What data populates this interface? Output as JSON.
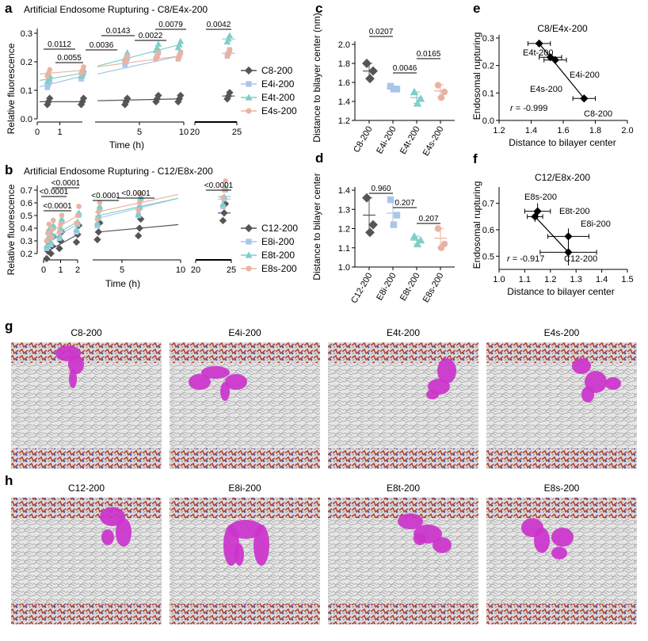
{
  "colors": {
    "C": "#555555",
    "Ei": "#a9c6ea",
    "Et": "#7fcfc8",
    "Es": "#eab3a1",
    "purple": "#cc33cc"
  },
  "panel_labels": {
    "a": "a",
    "b": "b",
    "c": "c",
    "d": "d",
    "e": "e",
    "f": "f",
    "g": "g",
    "h": "h"
  },
  "panels": {
    "a": {
      "title": "Artificial Endosome Rupturing - C8/E4x-200",
      "xlabel": "Time (h)",
      "ylabel": "Relative fluorescence",
      "yticks": [
        "0.0",
        "0.1",
        "0.2",
        "0.3"
      ],
      "xticks": [
        "0",
        "1",
        "5",
        "10",
        "20",
        "25"
      ],
      "legend": [
        "C8-200",
        "E4i-200",
        "E4t-200",
        "E4s-200"
      ],
      "sig": [
        "0.0112",
        "0.0055",
        "0.0036",
        "0.0143",
        "0.0022",
        "0.0079",
        "0.0042"
      ]
    },
    "b": {
      "title": "Artificial Endosome Rupturing - C12/E8x-200",
      "xlabel": "Time (h)",
      "ylabel": "Relative fluorescence",
      "yticks": [
        "0.2",
        "0.3",
        "0.4",
        "0.5",
        "0.6",
        "0.7"
      ],
      "xticks": [
        "0",
        "1",
        "2",
        "5",
        "10",
        "20",
        "25"
      ],
      "legend": [
        "C12-200",
        "E8i-200",
        "E8t-200",
        "E8s-200"
      ],
      "sig": [
        "<0.0001",
        "<0.0001",
        "<0.0001",
        "<0.0001",
        "<0.0001",
        "<0.0001"
      ]
    },
    "c": {
      "ylabel": "Distance to bilayer center (nm)",
      "yticks": [
        "1.2",
        "1.4",
        "1.6",
        "1.8",
        "2.0"
      ],
      "categories": [
        "C8-200",
        "E4i-200",
        "E4t-200",
        "E4s-200"
      ],
      "sig": [
        "0.0207",
        "0.0046",
        "0.0165"
      ]
    },
    "d": {
      "ylabel": "Distance to bilayer center",
      "yticks": [
        "1.0",
        "1.1",
        "1.2",
        "1.3",
        "1.4"
      ],
      "categories": [
        "C12-200",
        "E8i-200",
        "E8t-200",
        "E8s-200"
      ],
      "sig": [
        "0.960",
        "0.207",
        "0.207"
      ]
    },
    "e": {
      "title": "C8/E4x-200",
      "xlabel": "Distance to bilayer center",
      "ylabel": "Endosomal rupturing",
      "xticks": [
        "1.2",
        "1.4",
        "1.6",
        "1.8",
        "2.0"
      ],
      "yticks": [
        "0.0",
        "0.1",
        "0.2",
        "0.3"
      ],
      "r": "= -0.999",
      "r_sym": "r",
      "labels": [
        "E4t-200",
        "E4i-200",
        "E4s-200",
        "C8-200"
      ]
    },
    "f": {
      "title": "C12/E8x-200",
      "xlabel": "Distance to bilayer center",
      "ylabel": "Endosomal rupturing",
      "xticks": [
        "1.0",
        "1.1",
        "1.2",
        "1.3",
        "1.4",
        "1.5"
      ],
      "yticks": [
        "0.5",
        "0.6",
        "0.7"
      ],
      "r": "= -0.917",
      "r_sym": "r",
      "labels": [
        "E8s-200",
        "E8t-200",
        "E8i-200",
        "C12-200"
      ]
    },
    "g": {
      "titles": [
        "C8-200",
        "E4i-200",
        "E4t-200",
        "E4s-200"
      ]
    },
    "h": {
      "titles": [
        "C12-200",
        "E8i-200",
        "E8t-200",
        "E8s-200"
      ]
    }
  },
  "chart_data": [
    {
      "panel": "a",
      "type": "scatter",
      "title": "Artificial Endosome Rupturing - C8/E4x-200",
      "xlabel": "Time (h)",
      "ylabel": "Relative fluorescence",
      "ylim": [
        0,
        0.3
      ],
      "x": [
        0.5,
        2,
        3.5,
        7,
        9.5,
        24
      ],
      "series": [
        {
          "name": "C8-200",
          "values": [
            0.06,
            0.06,
            0.06,
            0.07,
            0.07,
            0.08
          ]
        },
        {
          "name": "E4i-200",
          "values": [
            0.12,
            0.15,
            0.2,
            0.22,
            0.22,
            0.23
          ]
        },
        {
          "name": "E4t-200",
          "values": [
            0.14,
            0.16,
            0.22,
            0.25,
            0.26,
            0.28
          ]
        },
        {
          "name": "E4s-200",
          "values": [
            0.16,
            0.17,
            0.21,
            0.22,
            0.22,
            0.23
          ]
        }
      ]
    },
    {
      "panel": "b",
      "type": "scatter",
      "title": "Artificial Endosome Rupturing - C12/E8x-200",
      "xlabel": "Time (h)",
      "ylabel": "Relative fluorescence",
      "ylim": [
        0.2,
        0.7
      ],
      "x": [
        0.25,
        0.5,
        1,
        2,
        3,
        6.5,
        24
      ],
      "series": [
        {
          "name": "C12-200",
          "values": [
            0.22,
            0.26,
            0.3,
            0.35,
            0.37,
            0.4,
            0.52
          ]
        },
        {
          "name": "E8i-200",
          "values": [
            0.3,
            0.33,
            0.38,
            0.43,
            0.48,
            0.56,
            0.63
          ]
        },
        {
          "name": "E8t-200",
          "values": [
            0.32,
            0.35,
            0.4,
            0.45,
            0.5,
            0.57,
            0.65
          ]
        },
        {
          "name": "E8s-200",
          "values": [
            0.36,
            0.39,
            0.43,
            0.5,
            0.53,
            0.6,
            0.7
          ]
        }
      ]
    },
    {
      "panel": "c",
      "type": "scatter",
      "ylabel": "Distance to bilayer center (nm)",
      "ylim": [
        1.2,
        2.0
      ],
      "categories": [
        "C8-200",
        "E4i-200",
        "E4t-200",
        "E4s-200"
      ],
      "values": [
        [
          1.8,
          1.72,
          1.64
        ],
        [
          1.56,
          1.53,
          1.53
        ],
        [
          1.5,
          1.43,
          1.38
        ],
        [
          1.57,
          1.5,
          1.44
        ]
      ],
      "means": [
        1.72,
        1.54,
        1.44,
        1.51
      ]
    },
    {
      "panel": "d",
      "type": "scatter",
      "ylabel": "Distance to bilayer center",
      "ylim": [
        1.0,
        1.4
      ],
      "categories": [
        "C12-200",
        "E8i-200",
        "E8t-200",
        "E8s-200"
      ],
      "values": [
        [
          1.36,
          1.22,
          1.18
        ],
        [
          1.35,
          1.27,
          1.22
        ],
        [
          1.16,
          1.14,
          1.12
        ],
        [
          1.2,
          1.12,
          1.1
        ]
      ],
      "means": [
        1.27,
        1.28,
        1.14,
        1.15
      ]
    },
    {
      "panel": "e",
      "type": "scatter",
      "title": "C8/E4x-200",
      "xlabel": "Distance to bilayer center",
      "ylabel": "Endosomal rupturing",
      "xlim": [
        1.2,
        2.0
      ],
      "ylim": [
        0.0,
        0.3
      ],
      "points": [
        {
          "label": "E4t-200",
          "x": 1.45,
          "y": 0.28,
          "xerr": 0.07,
          "yerr": 0.01
        },
        {
          "label": "E4i-200",
          "x": 1.52,
          "y": 0.23,
          "xerr": 0.07,
          "yerr": 0.01
        },
        {
          "label": "E4s-200",
          "x": 1.55,
          "y": 0.22,
          "xerr": 0.07,
          "yerr": 0.01
        },
        {
          "label": "C8-200",
          "x": 1.73,
          "y": 0.08,
          "xerr": 0.07,
          "yerr": 0.01
        }
      ]
    },
    {
      "panel": "f",
      "type": "scatter",
      "title": "C12/E8x-200",
      "xlabel": "Distance to bilayer center",
      "ylabel": "Endosomal rupturing",
      "xlim": [
        1.0,
        1.5
      ],
      "ylim": [
        0.45,
        0.75
      ],
      "points": [
        {
          "label": "E8s-200",
          "x": 1.15,
          "y": 0.67,
          "xerr": 0.05,
          "yerr": 0.03
        },
        {
          "label": "E8t-200",
          "x": 1.14,
          "y": 0.65,
          "xerr": 0.03,
          "yerr": 0.02
        },
        {
          "label": "E8i-200",
          "x": 1.27,
          "y": 0.575,
          "xerr": 0.08,
          "yerr": 0.03
        },
        {
          "label": "C12-200",
          "x": 1.27,
          "y": 0.515,
          "xerr": 0.11,
          "yerr": 0.05
        }
      ]
    }
  ]
}
